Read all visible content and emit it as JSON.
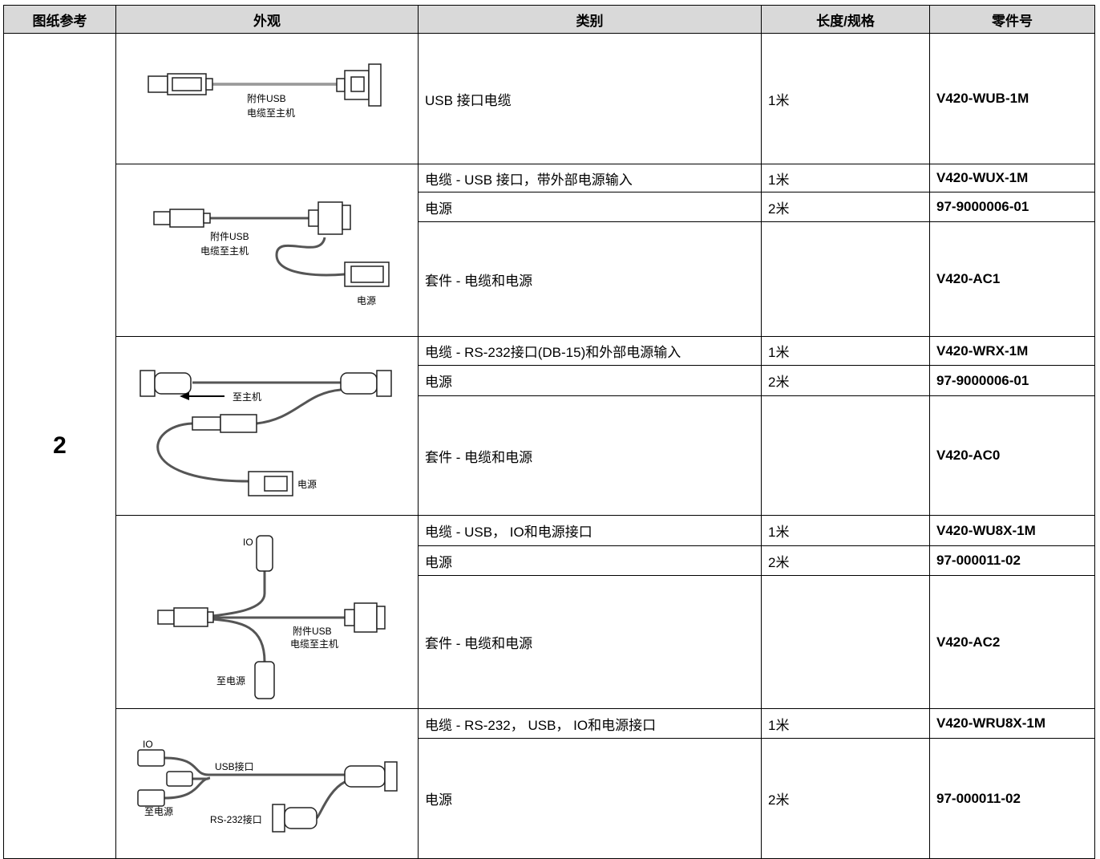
{
  "header": [
    "图纸参考",
    "外观",
    "类别",
    "长度/规格",
    "零件号"
  ],
  "reference": "2",
  "groups": [
    {
      "image_labels": [
        "附件USB",
        "电缆至主机"
      ],
      "rows": [
        {
          "category": "USB 接口电缆",
          "length": "1米",
          "part": "V420-WUB-1M"
        }
      ]
    },
    {
      "image_labels": [
        "附件USB",
        "电缆至主机",
        "电源"
      ],
      "rows": [
        {
          "category": "电缆 - USB 接口，带外部电源输入",
          "length": "1米",
          "part": "V420-WUX-1M"
        },
        {
          "category": "电源",
          "length": "2米",
          "part": "97-9000006-01"
        },
        {
          "category": "套件 - 电缆和电源",
          "part": "V420-AC1"
        }
      ]
    },
    {
      "image_labels": [
        "至主机",
        "电源"
      ],
      "rows": [
        {
          "category": "电缆 - RS-232接口(DB-15)和外部电源输入",
          "length": "1米",
          "part": "V420-WRX-1M"
        },
        {
          "category": "电源",
          "length": "2米",
          "part": "97-9000006-01"
        },
        {
          "category": "套件 - 电缆和电源",
          "part": "V420-AC0"
        }
      ]
    },
    {
      "image_labels": [
        "IO",
        "附件USB",
        "电缆至主机",
        "至电源"
      ],
      "rows": [
        {
          "category": "电缆 - USB， IO和电源接口",
          "length": "1米",
          "part": "V420-WU8X-1M"
        },
        {
          "category": "电源",
          "length": "2米",
          "part": "97-000011-02"
        },
        {
          "category": "套件 - 电缆和电源",
          "part": "V420-AC2"
        }
      ]
    },
    {
      "image_labels": [
        "IO",
        "USB接口",
        "至电源",
        "RS-232接口"
      ],
      "rows": [
        {
          "category": "电缆 - RS-232， USB， IO和电源接口",
          "length": "1米",
          "part": "V420-WRU8X-1M"
        },
        {
          "category": "电源",
          "length": "2米",
          "part": "97-000011-02"
        }
      ]
    }
  ]
}
